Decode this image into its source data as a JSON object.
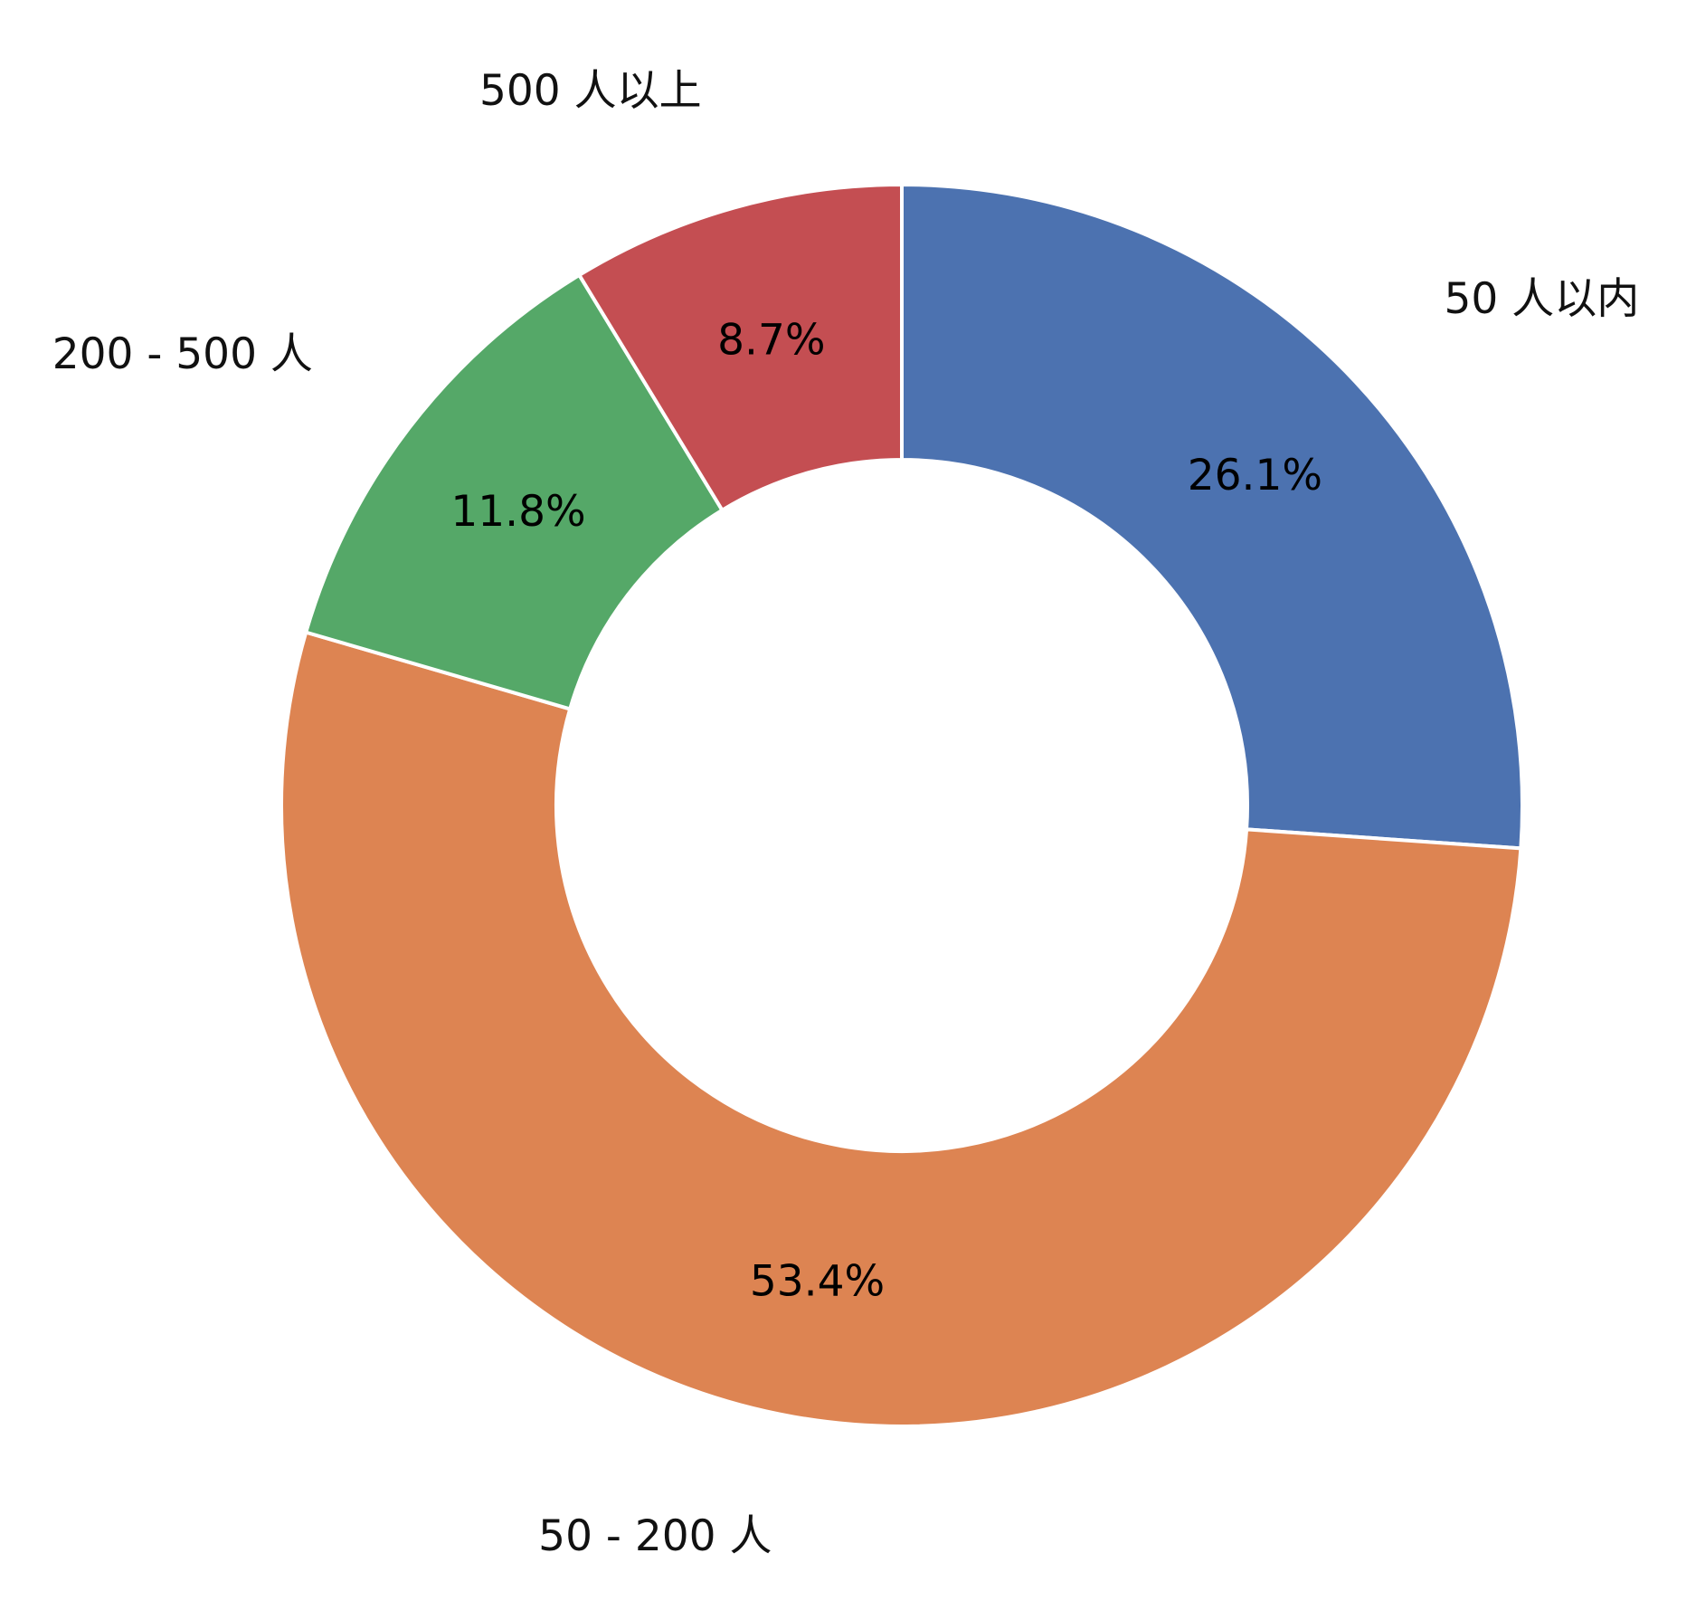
{
  "chart_data": {
    "type": "pie",
    "donut": true,
    "start_angle_deg": 90,
    "direction": "clockwise",
    "categories": [
      "50 人以内",
      "50 - 200 人",
      "200 - 500 人",
      "500 人以上"
    ],
    "values": [
      26.1,
      53.4,
      11.8,
      8.7
    ],
    "value_labels": [
      "26.1%",
      "53.4%",
      "11.8%",
      "8.7%"
    ],
    "colors": [
      "#4c72b0",
      "#dd8452",
      "#55a868",
      "#c44e52"
    ],
    "legend": "none"
  }
}
